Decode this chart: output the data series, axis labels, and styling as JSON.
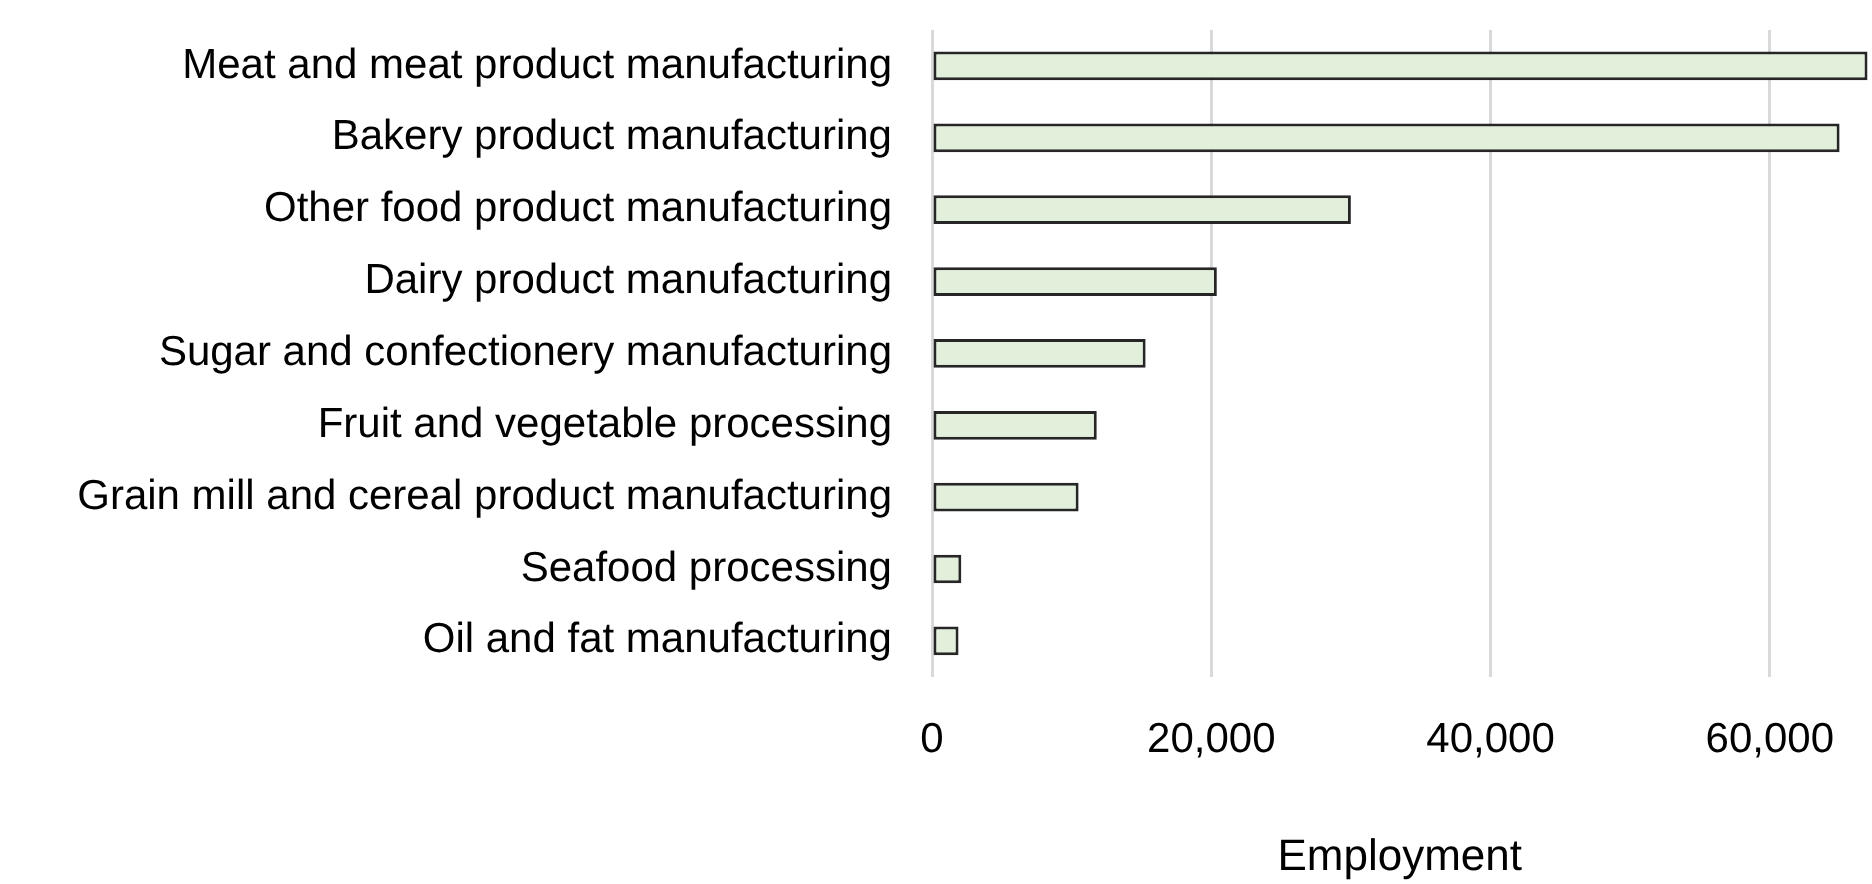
{
  "chart_data": {
    "type": "bar",
    "orientation": "horizontal",
    "categories": [
      "Meat and meat product manufacturing",
      "Bakery product manufacturing",
      "Other food product manufacturing",
      "Dairy product manufacturing",
      "Sugar and confectionery manufacturing",
      "Fruit and vegetable processing",
      "Grain mill and cereal product manufacturing",
      "Seafood processing",
      "Oil and fat manufacturing"
    ],
    "values": [
      67000,
      65000,
      30000,
      20400,
      15300,
      11800,
      10500,
      2100,
      1900
    ],
    "color": "#e2efda",
    "xlabel": "Employment",
    "xlim": [
      0,
      67000
    ],
    "xticks": [
      0,
      {
        "value": 20000,
        "label": "20,000"
      },
      {
        "value": 40000,
        "label": "40,000"
      },
      {
        "value": 60000,
        "label": "60,000"
      }
    ],
    "grid": "x",
    "legend": false
  }
}
